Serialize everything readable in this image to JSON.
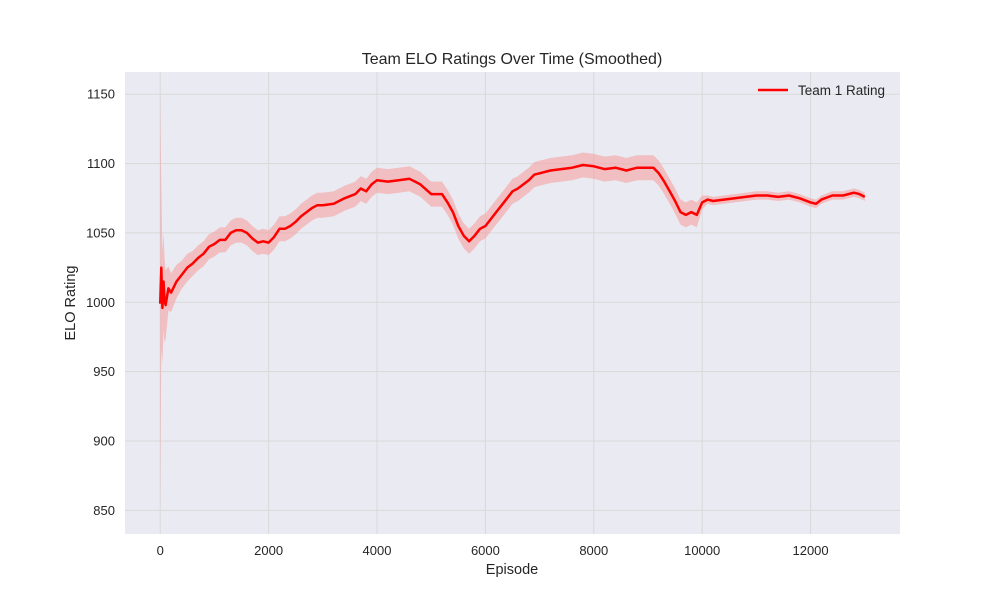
{
  "chart_data": {
    "type": "line",
    "title": "Team ELO Ratings Over Time (Smoothed)",
    "xlabel": "Episode",
    "ylabel": "ELO Rating",
    "xlim": [
      -650,
      13650
    ],
    "ylim": [
      833,
      1166
    ],
    "xticks": [
      0,
      2000,
      4000,
      6000,
      8000,
      10000,
      12000
    ],
    "yticks": [
      850,
      900,
      950,
      1000,
      1050,
      1100,
      1150
    ],
    "grid": true,
    "legend_position": "top-right",
    "colors": {
      "plot_background": "#eaeaf2",
      "grid": "#d9d9d9",
      "line": "#ff0000",
      "band": "#f4a6a6"
    },
    "series": [
      {
        "name": "Team 1 Rating",
        "x": [
          0,
          20,
          40,
          60,
          80,
          100,
          150,
          200,
          300,
          400,
          500,
          600,
          700,
          800,
          900,
          1000,
          1100,
          1200,
          1300,
          1400,
          1500,
          1600,
          1700,
          1800,
          1900,
          2000,
          2100,
          2200,
          2300,
          2400,
          2500,
          2600,
          2700,
          2800,
          2900,
          3000,
          3200,
          3400,
          3600,
          3700,
          3800,
          3900,
          4000,
          4200,
          4400,
          4600,
          4800,
          5000,
          5200,
          5300,
          5400,
          5500,
          5600,
          5700,
          5800,
          5900,
          6000,
          6100,
          6200,
          6300,
          6400,
          6500,
          6600,
          6700,
          6800,
          6900,
          7000,
          7200,
          7400,
          7600,
          7800,
          8000,
          8200,
          8400,
          8600,
          8800,
          9000,
          9100,
          9200,
          9300,
          9400,
          9500,
          9600,
          9700,
          9800,
          9900,
          10000,
          10100,
          10200,
          10400,
          10600,
          10800,
          11000,
          11200,
          11400,
          11600,
          11800,
          12000,
          12100,
          12200,
          12400,
          12600,
          12800,
          12900,
          13000
        ],
        "y": [
          999,
          1025,
          996,
          1015,
          1001,
          998,
          1010,
          1007,
          1015,
          1020,
          1025,
          1028,
          1032,
          1035,
          1040,
          1042,
          1045,
          1045,
          1050,
          1052,
          1052,
          1050,
          1046,
          1043,
          1044,
          1043,
          1047,
          1053,
          1053,
          1055,
          1058,
          1062,
          1065,
          1068,
          1070,
          1070,
          1071,
          1075,
          1078,
          1082,
          1080,
          1085,
          1088,
          1087,
          1088,
          1089,
          1085,
          1078,
          1078,
          1072,
          1065,
          1055,
          1048,
          1044,
          1048,
          1053,
          1055,
          1060,
          1065,
          1070,
          1075,
          1080,
          1082,
          1085,
          1088,
          1092,
          1093,
          1095,
          1096,
          1097,
          1099,
          1098,
          1096,
          1097,
          1095,
          1097,
          1097,
          1097,
          1093,
          1087,
          1080,
          1073,
          1065,
          1063,
          1065,
          1063,
          1072,
          1074,
          1073,
          1074,
          1075,
          1076,
          1077,
          1077,
          1076,
          1077,
          1075,
          1072,
          1071,
          1074,
          1077,
          1077,
          1079,
          1078,
          1076
        ],
        "std": [
          150,
          60,
          40,
          35,
          30,
          25,
          16,
          14,
          12,
          10,
          10,
          9,
          9,
          9,
          9,
          9,
          9,
          9,
          9,
          9,
          9,
          9,
          9,
          9,
          9,
          9,
          9,
          9,
          9,
          9,
          9,
          9,
          9,
          9,
          9,
          9,
          9,
          9,
          9,
          9,
          9,
          9,
          9,
          9,
          9,
          9,
          9,
          9,
          9,
          9,
          9,
          9,
          9,
          9,
          9,
          9,
          9,
          9,
          9,
          9,
          9,
          9,
          9,
          9,
          9,
          9,
          9,
          9,
          9,
          9,
          9,
          9,
          9,
          9,
          9,
          9,
          9,
          9,
          9,
          9,
          9,
          9,
          9,
          9,
          9,
          9,
          5,
          3,
          3,
          3,
          3,
          3,
          3,
          3,
          3,
          3,
          3,
          3,
          3,
          3,
          3,
          3,
          3,
          3,
          3
        ]
      }
    ]
  }
}
